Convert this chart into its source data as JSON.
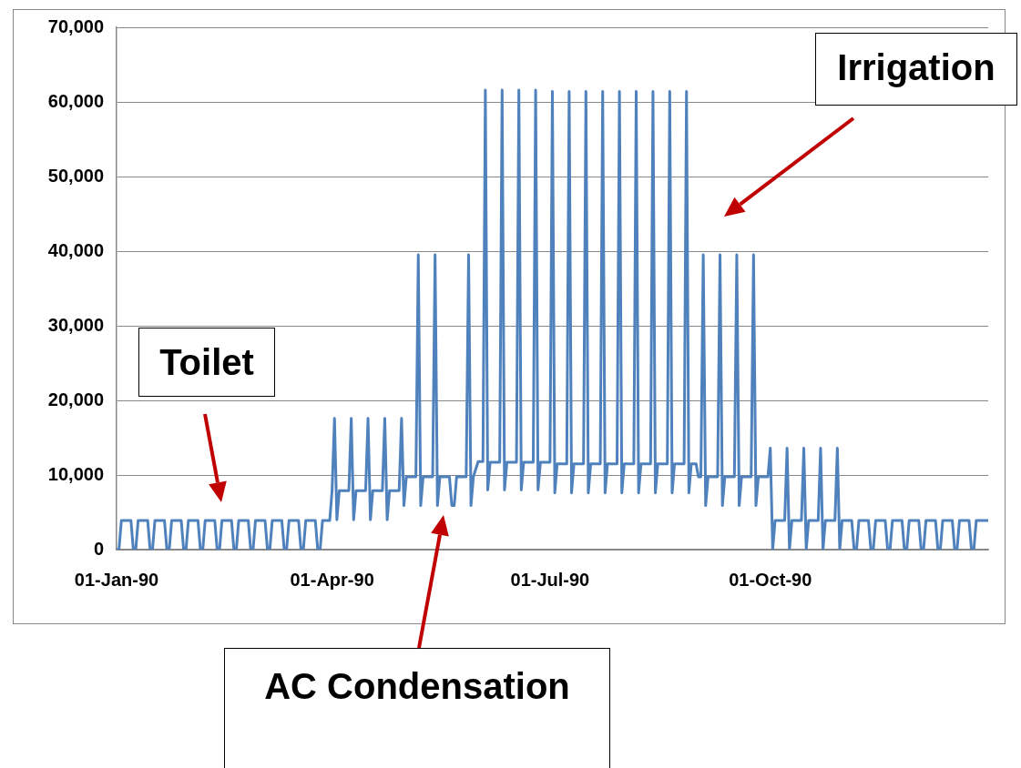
{
  "chart_data": {
    "type": "line",
    "annotations": [
      "Toilet",
      "Irrigation",
      "AC Condensation"
    ],
    "x": [
      "1990-01-01",
      "1990-01-02",
      "1990-01-03",
      "1990-01-04",
      "1990-01-05",
      "1990-01-06",
      "1990-01-07",
      "1990-01-08",
      "1990-01-09",
      "1990-01-10",
      "1990-01-11",
      "1990-01-12",
      "1990-01-13",
      "1990-01-14",
      "1990-01-15",
      "1990-01-16",
      "1990-01-17",
      "1990-01-18",
      "1990-01-19",
      "1990-01-20",
      "1990-01-21",
      "1990-01-22",
      "1990-01-23",
      "1990-01-24",
      "1990-01-25",
      "1990-01-26",
      "1990-01-27",
      "1990-01-28",
      "1990-01-29",
      "1990-01-30",
      "1990-01-31",
      "1990-02-01",
      "1990-02-02",
      "1990-02-03",
      "1990-02-04",
      "1990-02-05",
      "1990-02-06",
      "1990-02-07",
      "1990-02-08",
      "1990-02-09",
      "1990-02-10",
      "1990-02-11",
      "1990-02-12",
      "1990-02-13",
      "1990-02-14",
      "1990-02-15",
      "1990-02-16",
      "1990-02-17",
      "1990-02-18",
      "1990-02-19",
      "1990-02-20",
      "1990-02-21",
      "1990-02-22",
      "1990-02-23",
      "1990-02-24",
      "1990-02-25",
      "1990-02-26",
      "1990-02-27",
      "1990-02-28",
      "1990-03-01",
      "1990-03-02",
      "1990-03-03",
      "1990-03-04",
      "1990-03-05",
      "1990-03-06",
      "1990-03-07",
      "1990-03-08",
      "1990-03-09",
      "1990-03-10",
      "1990-03-11",
      "1990-03-12",
      "1990-03-13",
      "1990-03-14",
      "1990-03-15",
      "1990-03-16",
      "1990-03-17",
      "1990-03-18",
      "1990-03-19",
      "1990-03-20",
      "1990-03-21",
      "1990-03-22",
      "1990-03-23",
      "1990-03-24",
      "1990-03-25",
      "1990-03-26",
      "1990-03-27",
      "1990-03-28",
      "1990-03-29",
      "1990-03-30",
      "1990-03-31",
      "1990-04-01",
      "1990-04-02",
      "1990-04-03",
      "1990-04-04",
      "1990-04-05",
      "1990-04-06",
      "1990-04-07",
      "1990-04-08",
      "1990-04-09",
      "1990-04-10",
      "1990-04-11",
      "1990-04-12",
      "1990-04-13",
      "1990-04-14",
      "1990-04-15",
      "1990-04-16",
      "1990-04-17",
      "1990-04-18",
      "1990-04-19",
      "1990-04-20",
      "1990-04-21",
      "1990-04-22",
      "1990-04-23",
      "1990-04-24",
      "1990-04-25",
      "1990-04-26",
      "1990-04-27",
      "1990-04-28",
      "1990-04-29",
      "1990-04-30",
      "1990-05-01",
      "1990-05-02",
      "1990-05-03",
      "1990-05-04",
      "1990-05-05",
      "1990-05-06",
      "1990-05-07",
      "1990-05-08",
      "1990-05-09",
      "1990-05-10",
      "1990-05-11",
      "1990-05-12",
      "1990-05-13",
      "1990-05-14",
      "1990-05-15",
      "1990-05-16",
      "1990-05-17",
      "1990-05-18",
      "1990-05-19",
      "1990-05-20",
      "1990-05-21",
      "1990-05-22",
      "1990-05-23",
      "1990-05-24",
      "1990-05-25",
      "1990-05-26",
      "1990-05-27",
      "1990-05-28",
      "1990-05-29",
      "1990-05-30",
      "1990-05-31",
      "1990-06-01",
      "1990-06-02",
      "1990-06-03",
      "1990-06-04",
      "1990-06-05",
      "1990-06-06",
      "1990-06-07",
      "1990-06-08",
      "1990-06-09",
      "1990-06-10",
      "1990-06-11",
      "1990-06-12",
      "1990-06-13",
      "1990-06-14",
      "1990-06-15",
      "1990-06-16",
      "1990-06-17",
      "1990-06-18",
      "1990-06-19",
      "1990-06-20",
      "1990-06-21",
      "1990-06-22",
      "1990-06-23",
      "1990-06-24",
      "1990-06-25",
      "1990-06-26",
      "1990-06-27",
      "1990-06-28",
      "1990-06-29",
      "1990-06-30",
      "1990-07-01",
      "1990-07-02",
      "1990-07-03",
      "1990-07-04",
      "1990-07-05",
      "1990-07-06",
      "1990-07-07",
      "1990-07-08",
      "1990-07-09",
      "1990-07-10",
      "1990-07-11",
      "1990-07-12",
      "1990-07-13",
      "1990-07-14",
      "1990-07-15",
      "1990-07-16",
      "1990-07-17",
      "1990-07-18",
      "1990-07-19",
      "1990-07-20",
      "1990-07-21",
      "1990-07-22",
      "1990-07-23",
      "1990-07-24",
      "1990-07-25",
      "1990-07-26",
      "1990-07-27",
      "1990-07-28",
      "1990-07-29",
      "1990-07-30",
      "1990-07-31",
      "1990-08-01",
      "1990-08-02",
      "1990-08-03",
      "1990-08-04",
      "1990-08-05",
      "1990-08-06",
      "1990-08-07",
      "1990-08-08",
      "1990-08-09",
      "1990-08-10",
      "1990-08-11",
      "1990-08-12",
      "1990-08-13",
      "1990-08-14",
      "1990-08-15",
      "1990-08-16",
      "1990-08-17",
      "1990-08-18",
      "1990-08-19",
      "1990-08-20",
      "1990-08-21",
      "1990-08-22",
      "1990-08-23",
      "1990-08-24",
      "1990-08-25",
      "1990-08-26",
      "1990-08-27",
      "1990-08-28",
      "1990-08-29",
      "1990-08-30",
      "1990-08-31",
      "1990-09-01",
      "1990-09-02",
      "1990-09-03",
      "1990-09-04",
      "1990-09-05",
      "1990-09-06",
      "1990-09-07",
      "1990-09-08",
      "1990-09-09",
      "1990-09-10",
      "1990-09-11",
      "1990-09-12",
      "1990-09-13",
      "1990-09-14",
      "1990-09-15",
      "1990-09-16",
      "1990-09-17",
      "1990-09-18",
      "1990-09-19",
      "1990-09-20",
      "1990-09-21",
      "1990-09-22",
      "1990-09-23",
      "1990-09-24",
      "1990-09-25",
      "1990-09-26",
      "1990-09-27",
      "1990-09-28",
      "1990-09-29",
      "1990-09-30",
      "1990-10-01",
      "1990-10-02",
      "1990-10-03",
      "1990-10-04",
      "1990-10-05",
      "1990-10-06",
      "1990-10-07",
      "1990-10-08",
      "1990-10-09",
      "1990-10-10",
      "1990-10-11",
      "1990-10-12",
      "1990-10-13",
      "1990-10-14",
      "1990-10-15",
      "1990-10-16",
      "1990-10-17",
      "1990-10-18",
      "1990-10-19",
      "1990-10-20",
      "1990-10-21",
      "1990-10-22",
      "1990-10-23",
      "1990-10-24",
      "1990-10-25",
      "1990-10-26",
      "1990-10-27",
      "1990-10-28",
      "1990-10-29",
      "1990-10-30",
      "1990-10-31",
      "1990-11-01",
      "1990-11-02",
      "1990-11-03",
      "1990-11-04",
      "1990-11-05",
      "1990-11-06",
      "1990-11-07",
      "1990-11-08",
      "1990-11-09",
      "1990-11-10",
      "1990-11-11",
      "1990-11-12",
      "1990-11-13",
      "1990-11-14",
      "1990-11-15",
      "1990-11-16",
      "1990-11-17",
      "1990-11-18",
      "1990-11-19",
      "1990-11-20",
      "1990-11-21",
      "1990-11-22",
      "1990-11-23",
      "1990-11-24",
      "1990-11-25",
      "1990-11-26",
      "1990-11-27",
      "1990-11-28",
      "1990-11-29",
      "1990-11-30",
      "1990-12-01",
      "1990-12-02",
      "1990-12-03",
      "1990-12-04",
      "1990-12-05",
      "1990-12-06",
      "1990-12-07",
      "1990-12-08",
      "1990-12-09",
      "1990-12-10",
      "1990-12-11",
      "1990-12-12",
      "1990-12-13",
      "1990-12-14",
      "1990-12-15",
      "1990-12-16",
      "1990-12-17",
      "1990-12-18",
      "1990-12-19",
      "1990-12-20",
      "1990-12-21",
      "1990-12-22",
      "1990-12-23",
      "1990-12-24",
      "1990-12-25",
      "1990-12-26",
      "1990-12-27",
      "1990-12-28",
      "1990-12-29",
      "1990-12-30",
      "1990-12-31"
    ],
    "series": [
      {
        "color": "#4f81bd",
        "values": [
          0,
          0,
          3900,
          3900,
          3900,
          3900,
          3900,
          0,
          0,
          3900,
          3900,
          3900,
          3900,
          3900,
          0,
          0,
          3900,
          3900,
          3900,
          3900,
          3900,
          0,
          0,
          3900,
          3900,
          3900,
          3900,
          3900,
          0,
          0,
          3900,
          3900,
          3900,
          3900,
          3900,
          0,
          0,
          3900,
          3900,
          3900,
          3900,
          3900,
          0,
          0,
          3900,
          3900,
          3900,
          3900,
          3900,
          0,
          0,
          3900,
          3900,
          3900,
          3900,
          3900,
          0,
          0,
          3900,
          3900,
          3900,
          3900,
          3900,
          0,
          0,
          3900,
          3900,
          3900,
          3900,
          3900,
          0,
          0,
          3900,
          3900,
          3900,
          3900,
          3900,
          0,
          0,
          3900,
          3900,
          3900,
          3900,
          3900,
          0,
          0,
          3900,
          3900,
          3900,
          3900,
          7900,
          17600,
          4000,
          7900,
          7900,
          7900,
          7900,
          7900,
          17600,
          4000,
          7900,
          7900,
          7900,
          7900,
          7900,
          17600,
          4000,
          7900,
          7900,
          7900,
          7900,
          7900,
          17600,
          4000,
          7900,
          7900,
          7900,
          7900,
          7900,
          17600,
          5900,
          9750,
          9750,
          9750,
          9750,
          9750,
          39500,
          5900,
          9750,
          9750,
          9750,
          9750,
          9750,
          39500,
          5900,
          9750,
          9750,
          9750,
          9750,
          9750,
          5900,
          5900,
          9750,
          9750,
          9750,
          9750,
          9750,
          39500,
          5900,
          9750,
          10800,
          11800,
          11800,
          11800,
          61600,
          8000,
          11700,
          11700,
          11700,
          11700,
          11700,
          61600,
          8000,
          11700,
          11700,
          11700,
          11700,
          11700,
          61600,
          8000,
          11700,
          11700,
          11700,
          11700,
          11700,
          61600,
          8000,
          11700,
          11700,
          11700,
          11700,
          11700,
          61400,
          7600,
          11500,
          11500,
          11500,
          11500,
          11500,
          61400,
          7600,
          11500,
          11500,
          11500,
          11500,
          11500,
          61400,
          7600,
          11500,
          11500,
          11500,
          11500,
          11500,
          61400,
          7600,
          11500,
          11500,
          11500,
          11500,
          11500,
          61400,
          7600,
          11500,
          11500,
          11500,
          11500,
          11500,
          61400,
          7600,
          11500,
          11500,
          11500,
          11500,
          11500,
          61400,
          7600,
          11500,
          11500,
          11500,
          11500,
          11500,
          61400,
          7600,
          11500,
          11500,
          11500,
          11500,
          11500,
          61400,
          7600,
          11500,
          11500,
          11500,
          9750,
          9750,
          39500,
          5900,
          9750,
          9750,
          9750,
          9750,
          9750,
          39500,
          5900,
          9750,
          9750,
          9750,
          9750,
          9750,
          39500,
          5900,
          9750,
          9750,
          9750,
          9750,
          9750,
          39500,
          5900,
          9750,
          9750,
          9750,
          9750,
          9750,
          13600,
          0,
          3900,
          3900,
          3900,
          3900,
          3900,
          13600,
          0,
          3900,
          3900,
          3900,
          3900,
          3900,
          13600,
          0,
          3900,
          3900,
          3900,
          3900,
          3900,
          13600,
          0,
          3900,
          3900,
          3900,
          3900,
          3900,
          13600,
          0,
          3900,
          3900,
          3900,
          3900,
          3900,
          0,
          0,
          3900,
          3900,
          3900,
          3900,
          3900,
          0,
          0,
          3900,
          3900,
          3900,
          3900,
          3900,
          0,
          0,
          3900,
          3900,
          3900,
          3900,
          3900,
          0,
          0,
          3900,
          3900,
          3900,
          3900,
          3900,
          0,
          0,
          3900,
          3900,
          3900,
          3900,
          3900,
          0,
          0,
          3900,
          3900,
          3900,
          3900,
          3900,
          0,
          0,
          3900,
          3900,
          3900,
          3900,
          3900,
          0,
          0,
          3900,
          3900,
          3900,
          3900,
          3900,
          3900
        ]
      }
    ],
    "xlim": [
      "1990-01-01",
      "1990-12-31"
    ],
    "xticks": [
      {
        "value": "1990-01-01",
        "label": "01-Jan-90"
      },
      {
        "value": "1990-04-01",
        "label": "01-Apr-90"
      },
      {
        "value": "1990-07-01",
        "label": "01-Jul-90"
      },
      {
        "value": "1990-10-01",
        "label": "01-Oct-90"
      }
    ],
    "ylim": [
      0,
      70000
    ],
    "yticks": [
      0,
      {
        "value": 10000,
        "label": "10,000"
      },
      {
        "value": 20000,
        "label": "20,000"
      },
      {
        "value": 30000,
        "label": "30,000"
      },
      {
        "value": 40000,
        "label": "40,000"
      },
      {
        "value": 50000,
        "label": "50,000"
      },
      {
        "value": 60000,
        "label": "60,000"
      },
      {
        "value": 70000,
        "label": "70,000"
      }
    ],
    "grid": "y",
    "legend": false,
    "marker": "none",
    "line_style": "solid"
  }
}
